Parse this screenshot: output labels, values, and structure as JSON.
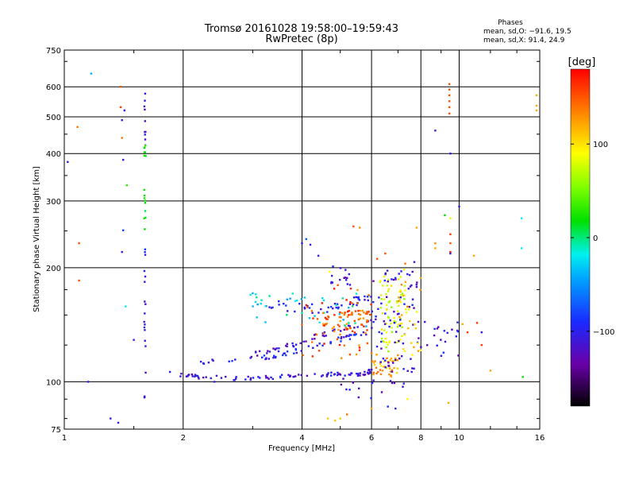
{
  "chart_data": {
    "type": "scatter",
    "title": "Tromsø 20161028 19:58:00–19:59:43",
    "subtitle": "RwPretec (8p)",
    "xlabel": "Frequency [MHz]",
    "ylabel": "Stationary phase Virtual Height [km]",
    "xscale": "log",
    "yscale": "log",
    "xlim": [
      1,
      16
    ],
    "ylim": [
      75,
      750
    ],
    "x_ticks": [
      1,
      2,
      4,
      6,
      8,
      10,
      16
    ],
    "y_ticks": [
      75,
      100,
      200,
      300,
      400,
      500,
      600,
      750
    ],
    "grid": true,
    "stats": {
      "header": "Phases",
      "line_o": "mean, sd,O: −91.6, 19.5",
      "line_x": "mean, sd,X:  91.4, 24.9"
    },
    "colorbar": {
      "label": "[deg]",
      "range": [
        -180,
        180
      ],
      "ticks": [
        100,
        0,
        -100
      ]
    },
    "series": [
      {
        "comment_none": "",
        "points": [
          [
            1.02,
            380,
            -110
          ],
          [
            1.08,
            470,
            140
          ],
          [
            1.09,
            232,
            150
          ],
          [
            1.09,
            185,
            150
          ],
          [
            1.15,
            100,
            -100
          ],
          [
            1.17,
            650,
            -40
          ],
          [
            1.31,
            80,
            -110
          ],
          [
            1.37,
            78,
            -110
          ],
          [
            1.39,
            600,
            150
          ],
          [
            1.39,
            530,
            160
          ],
          [
            1.4,
            490,
            -110
          ],
          [
            1.42,
            520,
            -100
          ],
          [
            1.4,
            440,
            140
          ],
          [
            1.41,
            385,
            -110
          ],
          [
            1.41,
            251,
            -80
          ],
          [
            1.4,
            220,
            -110
          ],
          [
            1.44,
            330,
            30
          ],
          [
            1.43,
            158,
            -20
          ],
          [
            1.5,
            129,
            -100
          ],
          [
            9.45,
            610,
            150
          ],
          [
            9.45,
            590,
            150
          ],
          [
            9.45,
            570,
            150
          ],
          [
            9.45,
            550,
            150
          ],
          [
            9.45,
            530,
            150
          ],
          [
            9.45,
            510,
            150
          ],
          [
            9.5,
            400,
            -110
          ],
          [
            8.7,
            460,
            -110
          ],
          [
            10,
            290,
            -110
          ],
          [
            9.5,
            270,
            80
          ],
          [
            9.2,
            275,
            20
          ],
          [
            9.5,
            245,
            160
          ],
          [
            9.5,
            232,
            150
          ],
          [
            9.5,
            220,
            170
          ],
          [
            9.5,
            218,
            -110
          ],
          [
            8.7,
            232,
            130
          ],
          [
            8.7,
            225,
            120
          ],
          [
            10.9,
            215,
            120
          ],
          [
            14.4,
            225,
            -20
          ],
          [
            14.4,
            270,
            -20
          ],
          [
            15.7,
            570,
            120
          ],
          [
            15.7,
            535,
            120
          ],
          [
            15.7,
            520,
            120
          ],
          [
            14.5,
            103,
            20
          ],
          [
            12,
            107,
            120
          ],
          [
            10.5,
            135,
            160
          ],
          [
            11.4,
            125,
            160
          ],
          [
            11.4,
            135,
            -110
          ],
          [
            11.1,
            143,
            160
          ],
          [
            10.2,
            142,
            120
          ],
          [
            9.4,
            88,
            120
          ],
          [
            7.2,
            97,
            -110
          ],
          [
            7.4,
            90,
            90
          ],
          [
            6.6,
            86,
            -90
          ],
          [
            6.9,
            85,
            -100
          ],
          [
            5.2,
            82,
            140
          ],
          [
            5.0,
            80,
            110
          ],
          [
            4.85,
            79,
            110
          ],
          [
            4.65,
            80,
            110
          ],
          [
            6,
            85,
            120
          ],
          [
            5.4,
            257,
            150
          ],
          [
            5.6,
            255,
            130
          ],
          [
            6.2,
            211,
            150
          ],
          [
            6.5,
            218,
            150
          ],
          [
            7.3,
            205,
            140
          ],
          [
            7.7,
            207,
            -110
          ],
          [
            7.8,
            255,
            120
          ],
          [
            4.4,
            215,
            -110
          ],
          [
            4.1,
            238,
            -70
          ],
          [
            4.0,
            232,
            -100
          ],
          [
            4.2,
            230,
            -110
          ],
          [
            4.7,
            195,
            90
          ],
          [
            3.1,
            103,
            -110
          ],
          [
            2.7,
            101,
            -110
          ],
          [
            2.4,
            100,
            -100
          ]
        ]
      }
    ],
    "point_groups": [
      {
        "type": "column",
        "x": 1.6,
        "y_from": 90,
        "y_to": 580,
        "n": 45,
        "phases": [
          [
            80,
            600,
            -110
          ],
          [
            190,
            300,
            -100
          ],
          [
            250,
            420,
            20
          ],
          [
            420,
            580,
            -110
          ]
        ]
      },
      {
        "type": "trace",
        "x": [
          1.85,
          2.2,
          2.8,
          3.5,
          4.2,
          5.0,
          5.7,
          6.0
        ],
        "y": [
          105,
          103,
          102,
          103,
          104,
          105,
          105,
          107
        ],
        "n": 90,
        "jitter": 0.012,
        "phase": -110
      },
      {
        "type": "trace",
        "x": [
          2.2,
          2.7,
          3.3,
          3.9,
          4.5,
          5.2,
          5.8
        ],
        "y": [
          113,
          114,
          116,
          121,
          126,
          131,
          134
        ],
        "n": 55,
        "jitter": 0.014,
        "phase": -100
      },
      {
        "type": "trace",
        "x": [
          3.0,
          3.5,
          4.0,
          4.6,
          5.4,
          6.1
        ],
        "y": [
          118,
          122,
          128,
          134,
          140,
          146
        ],
        "n": 45,
        "jitter": 0.016,
        "phase": -115
      },
      {
        "type": "trace",
        "x": [
          3.2,
          3.6,
          4.1,
          4.8,
          5.4,
          6.0
        ],
        "y": [
          160,
          158,
          156,
          157,
          163,
          167
        ],
        "n": 45,
        "jitter": 0.03,
        "phase": -100
      },
      {
        "type": "trace",
        "x": [
          4.6,
          5.0,
          5.5,
          6.0
        ],
        "y": [
          148,
          150,
          152,
          155
        ],
        "n": 30,
        "jitter": 0.02,
        "phase": 150
      },
      {
        "type": "trace",
        "x": [
          4.5,
          5.3,
          6.0
        ],
        "y": [
          138,
          142,
          146
        ],
        "n": 25,
        "jitter": 0.03,
        "phase": 140
      },
      {
        "type": "cluster",
        "x_from": 6.0,
        "x_to": 7.0,
        "y_from": 103,
        "y_to": 118,
        "n": 40,
        "phase": 120
      },
      {
        "type": "cluster",
        "x_from": 6.3,
        "x_to": 7.3,
        "y_from": 120,
        "y_to": 190,
        "n": 70,
        "phase": 80
      },
      {
        "type": "cluster",
        "x_from": 6.0,
        "x_to": 8.0,
        "y_from": 105,
        "y_to": 200,
        "n": 80,
        "phase": -110
      },
      {
        "type": "cluster",
        "x_from": 7.0,
        "x_to": 8.0,
        "y_from": 115,
        "y_to": 200,
        "n": 30,
        "phase": 110
      },
      {
        "type": "cluster",
        "x_from": 2.8,
        "x_to": 6.0,
        "y_from": 140,
        "y_to": 175,
        "n": 40,
        "phase": -20
      },
      {
        "type": "cluster",
        "x_from": 4.0,
        "x_to": 6.0,
        "y_from": 115,
        "y_to": 180,
        "n": 50,
        "phase": 150
      },
      {
        "type": "cluster",
        "x_from": 5.0,
        "x_to": 8.0,
        "y_from": 90,
        "y_to": 102,
        "n": 15,
        "phase": -110
      },
      {
        "type": "cluster",
        "x_from": 8.0,
        "x_to": 10.0,
        "y_from": 115,
        "y_to": 145,
        "n": 20,
        "phase": -110
      },
      {
        "type": "cluster",
        "x_from": 4.7,
        "x_to": 5.3,
        "y_from": 180,
        "y_to": 205,
        "n": 15,
        "phase": -120
      }
    ]
  }
}
